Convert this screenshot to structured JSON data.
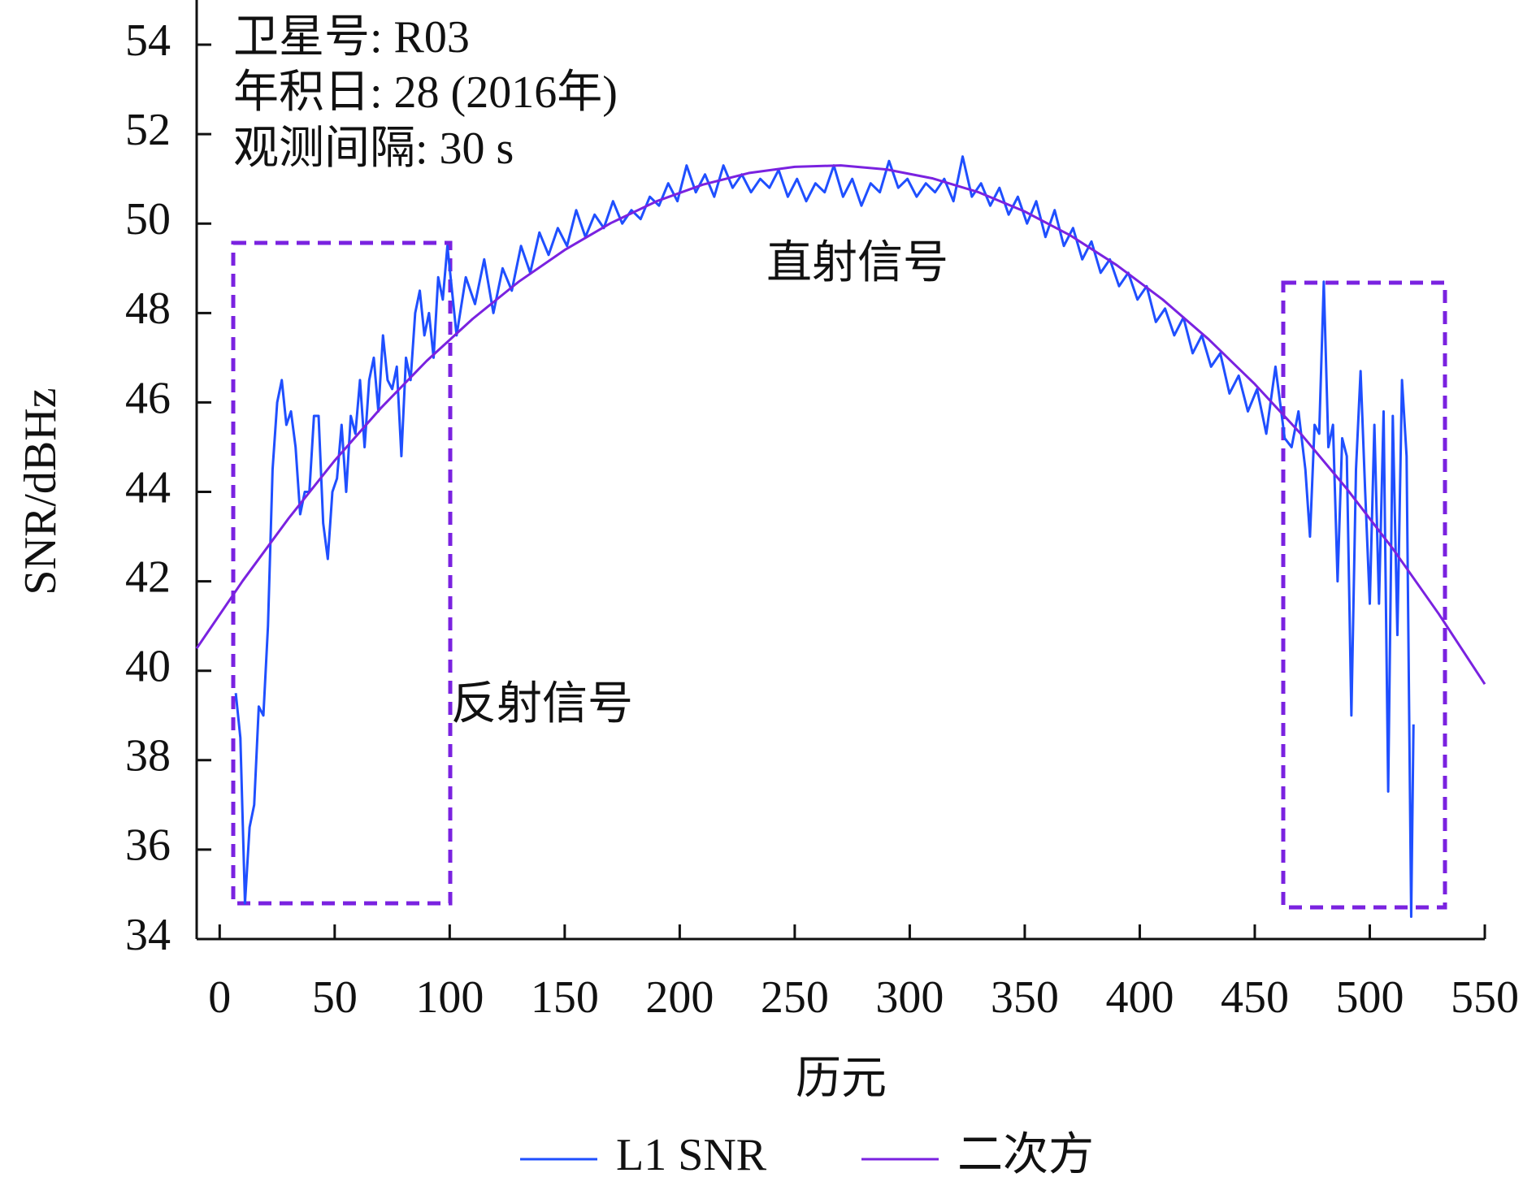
{
  "chart_data": {
    "type": "line",
    "x_label": "历元",
    "y_label": "SNR/dBHz",
    "annotations": [
      "卫星号: R03",
      "年积日: 28 (2016年)",
      "观测间隔: 30 s"
    ],
    "region_labels": [
      "直射信号",
      "反射信号"
    ],
    "xlim": [
      -10,
      550
    ],
    "ylim": [
      34,
      55
    ],
    "xticks": [
      0,
      50,
      100,
      150,
      200,
      250,
      300,
      350,
      400,
      450,
      500,
      550
    ],
    "yticks": [
      34,
      36,
      38,
      40,
      42,
      44,
      46,
      48,
      50,
      52,
      54
    ],
    "legend": "bottom",
    "series": [
      {
        "name": "L1 SNR",
        "color": "#1f4fff",
        "x": [
          7,
          9,
          11,
          13,
          15,
          17,
          19,
          21,
          23,
          25,
          27,
          29,
          31,
          33,
          35,
          37,
          39,
          41,
          43,
          45,
          47,
          49,
          51,
          53,
          55,
          57,
          59,
          61,
          63,
          65,
          67,
          69,
          71,
          73,
          75,
          77,
          79,
          81,
          83,
          85,
          87,
          89,
          91,
          93,
          95,
          97,
          99,
          103,
          107,
          111,
          115,
          119,
          123,
          127,
          131,
          135,
          139,
          143,
          147,
          151,
          155,
          159,
          163,
          167,
          171,
          175,
          179,
          183,
          187,
          191,
          195,
          199,
          203,
          207,
          211,
          215,
          219,
          223,
          227,
          231,
          235,
          239,
          243,
          247,
          251,
          255,
          259,
          263,
          267,
          271,
          275,
          279,
          283,
          287,
          291,
          295,
          299,
          303,
          307,
          311,
          315,
          319,
          323,
          327,
          331,
          335,
          339,
          343,
          347,
          351,
          355,
          359,
          363,
          367,
          371,
          375,
          379,
          383,
          387,
          391,
          395,
          399,
          403,
          407,
          411,
          415,
          419,
          423,
          427,
          431,
          435,
          439,
          443,
          447,
          451,
          455,
          459,
          463,
          466,
          469,
          472,
          474,
          476,
          478,
          480,
          482,
          484,
          486,
          488,
          490,
          492,
          494,
          496,
          498,
          500,
          502,
          504,
          506,
          508,
          510,
          512,
          514,
          516,
          518,
          519
        ],
        "values": [
          39.5,
          38.5,
          34.8,
          36.5,
          37,
          39.2,
          39.0,
          41,
          44.5,
          46,
          46.5,
          45.5,
          45.8,
          45,
          43.5,
          44,
          44,
          45.7,
          45.7,
          43.3,
          42.5,
          44,
          44.3,
          45.5,
          44,
          45.7,
          45.3,
          46.5,
          45,
          46.5,
          47,
          45.8,
          47.5,
          46.5,
          46.3,
          46.8,
          44.8,
          47,
          46.5,
          48,
          48.5,
          47.5,
          48,
          47,
          48.8,
          48.3,
          49.5,
          47.5,
          48.8,
          48.2,
          49.2,
          48,
          49,
          48.5,
          49.5,
          48.9,
          49.8,
          49.3,
          49.9,
          49.5,
          50.3,
          49.7,
          50.2,
          49.9,
          50.5,
          50,
          50.3,
          50.1,
          50.6,
          50.4,
          50.9,
          50.5,
          51.3,
          50.7,
          51.1,
          50.6,
          51.3,
          50.8,
          51.1,
          50.7,
          51.0,
          50.8,
          51.2,
          50.6,
          51.0,
          50.5,
          50.9,
          50.7,
          51.3,
          50.6,
          51.0,
          50.4,
          50.9,
          50.7,
          51.4,
          50.8,
          51.0,
          50.6,
          50.9,
          50.7,
          51.0,
          50.5,
          51.5,
          50.6,
          50.9,
          50.4,
          50.8,
          50.2,
          50.6,
          50.0,
          50.5,
          49.7,
          50.3,
          49.5,
          49.9,
          49.2,
          49.6,
          48.9,
          49.2,
          48.6,
          48.9,
          48.3,
          48.6,
          47.8,
          48.1,
          47.5,
          47.9,
          47.1,
          47.5,
          46.8,
          47.1,
          46.2,
          46.6,
          45.8,
          46.3,
          45.3,
          46.8,
          45.2,
          45,
          45.8,
          44.5,
          43,
          45.5,
          45.3,
          48.7,
          45,
          45.5,
          42,
          45.2,
          44.8,
          39,
          44.5,
          46.7,
          44,
          41.5,
          45.5,
          41.5,
          45.8,
          37.3,
          45.7,
          40.8,
          46.5,
          44.8,
          34.5,
          38.8
        ]
      },
      {
        "name": "二次方",
        "color": "#7a22e0",
        "x": [
          -10,
          10,
          30,
          50,
          70,
          90,
          110,
          130,
          150,
          170,
          190,
          210,
          230,
          250,
          270,
          290,
          310,
          330,
          350,
          370,
          390,
          410,
          430,
          450,
          470,
          490,
          510,
          530,
          550
        ],
        "values": [
          40.5,
          42.01,
          43.41,
          44.7,
          45.87,
          46.93,
          47.87,
          48.7,
          49.41,
          50.01,
          50.5,
          50.87,
          51.13,
          51.27,
          51.3,
          51.21,
          51.01,
          50.7,
          50.27,
          49.73,
          49.07,
          48.3,
          47.41,
          46.41,
          45.3,
          44.07,
          42.73,
          41.27,
          39.7
        ]
      }
    ]
  }
}
